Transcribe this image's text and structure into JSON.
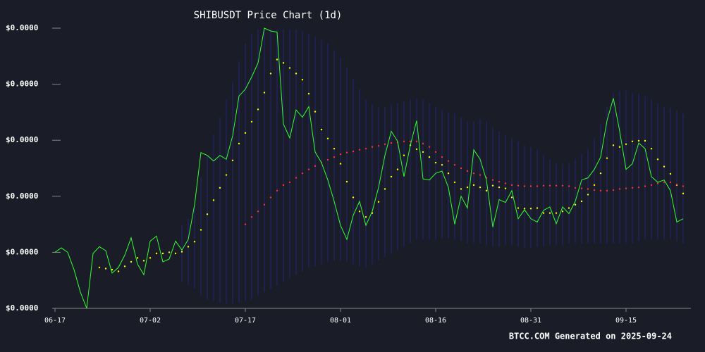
{
  "chart_data": {
    "type": "line",
    "title": "SHIBUSDT Price Chart (1d)",
    "footer": "BTCC.COM Generated on 2025-09-24",
    "categories": [
      "06-17",
      null,
      null,
      null,
      null,
      null,
      null,
      null,
      null,
      null,
      null,
      null,
      null,
      null,
      null,
      "07-02",
      null,
      null,
      null,
      null,
      null,
      null,
      null,
      null,
      null,
      null,
      null,
      null,
      null,
      null,
      "07-17",
      null,
      null,
      null,
      null,
      null,
      null,
      null,
      null,
      null,
      null,
      null,
      null,
      null,
      null,
      "08-01",
      null,
      null,
      null,
      null,
      null,
      null,
      null,
      null,
      null,
      null,
      null,
      null,
      null,
      null,
      "08-16",
      null,
      null,
      null,
      null,
      null,
      null,
      null,
      null,
      null,
      null,
      null,
      null,
      null,
      null,
      "08-31",
      null,
      null,
      null,
      null,
      null,
      null,
      null,
      null,
      null,
      null,
      null,
      null,
      null,
      null,
      "09-15",
      null,
      null,
      null,
      null,
      null,
      null,
      null,
      null,
      null
    ],
    "ylim": [
      1e-05,
      1.5e-05
    ],
    "yticks": [
      {
        "value": 1e-05,
        "label": "$0.0000"
      },
      {
        "value": 1.1e-05,
        "label": "$0.0000"
      },
      {
        "value": 1.2e-05,
        "label": "$0.0000"
      },
      {
        "value": 1.3e-05,
        "label": "$0.0000"
      },
      {
        "value": 1.4e-05,
        "label": "$0.0000"
      },
      {
        "value": 1.5e-05,
        "label": "$0.0000"
      }
    ],
    "band": {
      "color": "#23237a",
      "upper": [
        null,
        null,
        null,
        null,
        null,
        null,
        null,
        null,
        null,
        null,
        null,
        null,
        null,
        null,
        null,
        null,
        null,
        null,
        null,
        null,
        1.148e-05,
        1.16e-05,
        1.185e-05,
        1.235e-05,
        1.273e-05,
        1.31e-05,
        1.341e-05,
        1.373e-05,
        1.404e-05,
        1.441e-05,
        1.473e-05,
        1.491e-05,
        1.498e-05,
        1.498e-05,
        1.498e-05,
        1.498e-05,
        1.498e-05,
        1.498e-05,
        1.498e-05,
        1.495e-05,
        1.491e-05,
        1.485e-05,
        1.479e-05,
        1.473e-05,
        1.46e-05,
        1.448e-05,
        1.429e-05,
        1.41e-05,
        1.391e-05,
        1.373e-05,
        1.363e-05,
        1.36e-05,
        1.36e-05,
        1.363e-05,
        1.366e-05,
        1.37e-05,
        1.373e-05,
        1.375e-05,
        1.373e-05,
        1.366e-05,
        1.36e-05,
        1.354e-05,
        1.35e-05,
        1.348e-05,
        1.341e-05,
        1.335e-05,
        1.335e-05,
        1.338e-05,
        1.333e-05,
        1.323e-05,
        1.316e-05,
        1.31e-05,
        1.304e-05,
        1.298e-05,
        1.291e-05,
        1.288e-05,
        1.283e-05,
        1.273e-05,
        1.266e-05,
        1.26e-05,
        1.258e-05,
        1.26e-05,
        1.266e-05,
        1.275e-05,
        1.285e-05,
        1.304e-05,
        1.329e-05,
        1.36e-05,
        1.385e-05,
        1.388e-05,
        1.388e-05,
        1.385e-05,
        1.383e-05,
        1.379e-05,
        1.373e-05,
        1.366e-05,
        1.36e-05,
        1.358e-05,
        1.354e-05,
        1.348e-05
      ],
      "lower": [
        null,
        null,
        null,
        null,
        null,
        null,
        null,
        null,
        null,
        null,
        null,
        null,
        null,
        null,
        null,
        null,
        null,
        null,
        null,
        null,
        1.048e-05,
        1.041e-05,
        1.035e-05,
        1.023e-05,
        1.016e-05,
        1.013e-05,
        1.01e-05,
        1.008e-05,
        1.008e-05,
        1.01e-05,
        1.013e-05,
        1.016e-05,
        1.023e-05,
        1.029e-05,
        1.035e-05,
        1.041e-05,
        1.048e-05,
        1.054e-05,
        1.06e-05,
        1.066e-05,
        1.073e-05,
        1.075e-05,
        1.079e-05,
        1.083e-05,
        1.085e-05,
        1.085e-05,
        1.083e-05,
        1.079e-05,
        1.075e-05,
        1.073e-05,
        1.079e-05,
        1.085e-05,
        1.091e-05,
        1.098e-05,
        1.104e-05,
        1.11e-05,
        1.116e-05,
        1.123e-05,
        1.123e-05,
        1.123e-05,
        1.123e-05,
        1.125e-05,
        1.125e-05,
        1.123e-05,
        1.12e-05,
        1.116e-05,
        1.116e-05,
        1.116e-05,
        1.113e-05,
        1.11e-05,
        1.11e-05,
        1.113e-05,
        1.113e-05,
        1.11e-05,
        1.108e-05,
        1.108e-05,
        1.11e-05,
        1.11e-05,
        1.113e-05,
        1.113e-05,
        1.113e-05,
        1.116e-05,
        1.116e-05,
        1.116e-05,
        1.116e-05,
        1.116e-05,
        1.116e-05,
        1.116e-05,
        1.116e-05,
        1.116e-05,
        1.116e-05,
        1.116e-05,
        1.12e-05,
        1.123e-05,
        1.123e-05,
        1.123e-05,
        1.123e-05,
        1.123e-05,
        1.12e-05,
        1.116e-05
      ]
    },
    "series": [
      {
        "mark": "line",
        "color": "#33ff33",
        "values": [
          1.1e-05,
          1.108e-05,
          1.1e-05,
          1.069e-05,
          1.029e-05,
          1e-05,
          1.098e-05,
          1.11e-05,
          1.103e-05,
          1.063e-05,
          1.073e-05,
          1.095e-05,
          1.126e-05,
          1.079e-05,
          1.06e-05,
          1.12e-05,
          1.129e-05,
          1.083e-05,
          1.088e-05,
          1.12e-05,
          1.104e-05,
          1.123e-05,
          1.185e-05,
          1.278e-05,
          1.273e-05,
          1.263e-05,
          1.273e-05,
          1.266e-05,
          1.308e-05,
          1.379e-05,
          1.391e-05,
          1.413e-05,
          1.438e-05,
          1.5e-05,
          1.495e-05,
          1.493e-05,
          1.329e-05,
          1.304e-05,
          1.354e-05,
          1.341e-05,
          1.36e-05,
          1.279e-05,
          1.26e-05,
          1.229e-05,
          1.191e-05,
          1.148e-05,
          1.123e-05,
          1.166e-05,
          1.191e-05,
          1.148e-05,
          1.173e-05,
          1.216e-05,
          1.273e-05,
          1.316e-05,
          1.298e-05,
          1.235e-05,
          1.291e-05,
          1.335e-05,
          1.231e-05,
          1.229e-05,
          1.241e-05,
          1.245e-05,
          1.216e-05,
          1.15e-05,
          1.2e-05,
          1.179e-05,
          1.283e-05,
          1.266e-05,
          1.229e-05,
          1.145e-05,
          1.194e-05,
          1.189e-05,
          1.21e-05,
          1.16e-05,
          1.176e-05,
          1.16e-05,
          1.154e-05,
          1.175e-05,
          1.181e-05,
          1.151e-05,
          1.181e-05,
          1.169e-05,
          1.191e-05,
          1.229e-05,
          1.233e-05,
          1.248e-05,
          1.27e-05,
          1.335e-05,
          1.375e-05,
          1.316e-05,
          1.248e-05,
          1.258e-05,
          1.295e-05,
          1.285e-05,
          1.235e-05,
          1.225e-05,
          1.229e-05,
          1.21e-05,
          1.154e-05,
          1.16e-05
        ]
      },
      {
        "mark": "dots",
        "color": "#ffff00",
        "values": [
          null,
          null,
          null,
          null,
          null,
          null,
          null,
          1.073e-05,
          1.071e-05,
          1.069e-05,
          1.066e-05,
          1.075e-05,
          1.083e-05,
          1.09e-05,
          1.085e-05,
          1.09e-05,
          1.098e-05,
          1.098e-05,
          1.1e-05,
          1.098e-05,
          1.101e-05,
          1.11e-05,
          1.119e-05,
          1.14e-05,
          1.168e-05,
          1.193e-05,
          1.215e-05,
          1.238e-05,
          1.264e-05,
          1.294e-05,
          1.313e-05,
          1.333e-05,
          1.355e-05,
          1.385e-05,
          1.419e-05,
          1.444e-05,
          1.438e-05,
          1.429e-05,
          1.419e-05,
          1.408e-05,
          1.383e-05,
          1.351e-05,
          1.319e-05,
          1.303e-05,
          1.285e-05,
          1.258e-05,
          1.226e-05,
          1.198e-05,
          1.173e-05,
          1.163e-05,
          1.17e-05,
          1.19e-05,
          1.213e-05,
          1.235e-05,
          1.248e-05,
          1.273e-05,
          1.291e-05,
          1.284e-05,
          1.279e-05,
          1.27e-05,
          1.26e-05,
          1.256e-05,
          1.241e-05,
          1.225e-05,
          1.213e-05,
          1.216e-05,
          1.22e-05,
          1.216e-05,
          1.21e-05,
          1.219e-05,
          1.216e-05,
          1.214e-05,
          1.198e-05,
          1.179e-05,
          1.178e-05,
          1.178e-05,
          1.179e-05,
          1.17e-05,
          1.17e-05,
          1.17e-05,
          1.173e-05,
          1.179e-05,
          1.185e-05,
          1.191e-05,
          1.203e-05,
          1.22e-05,
          1.241e-05,
          1.268e-05,
          1.291e-05,
          1.288e-05,
          1.293e-05,
          1.298e-05,
          1.299e-05,
          1.299e-05,
          1.285e-05,
          1.266e-05,
          1.253e-05,
          1.24e-05,
          1.22e-05,
          1.205e-05
        ]
      },
      {
        "mark": "dots",
        "color": "#ff3030",
        "values": [
          null,
          null,
          null,
          null,
          null,
          null,
          null,
          null,
          null,
          null,
          null,
          null,
          null,
          null,
          null,
          null,
          null,
          null,
          null,
          null,
          null,
          null,
          null,
          null,
          null,
          null,
          null,
          null,
          null,
          null,
          1.15e-05,
          1.163e-05,
          1.173e-05,
          1.185e-05,
          1.198e-05,
          1.21e-05,
          1.22e-05,
          1.225e-05,
          1.233e-05,
          1.241e-05,
          1.248e-05,
          1.254e-05,
          1.26e-05,
          1.265e-05,
          1.27e-05,
          1.275e-05,
          1.278e-05,
          1.28e-05,
          1.283e-05,
          1.285e-05,
          1.288e-05,
          1.29e-05,
          1.293e-05,
          1.295e-05,
          1.296e-05,
          1.298e-05,
          1.298e-05,
          1.298e-05,
          1.294e-05,
          1.288e-05,
          1.279e-05,
          1.27e-05,
          1.263e-05,
          1.256e-05,
          1.25e-05,
          1.245e-05,
          1.241e-05,
          1.238e-05,
          1.233e-05,
          1.229e-05,
          1.226e-05,
          1.223e-05,
          1.22e-05,
          1.219e-05,
          1.218e-05,
          1.218e-05,
          1.218e-05,
          1.219e-05,
          1.219e-05,
          1.219e-05,
          1.219e-05,
          1.218e-05,
          1.215e-05,
          1.214e-05,
          1.213e-05,
          1.211e-05,
          1.21e-05,
          1.21e-05,
          1.211e-05,
          1.213e-05,
          1.214e-05,
          1.215e-05,
          1.216e-05,
          1.218e-05,
          1.22e-05,
          1.223e-05,
          1.225e-05,
          1.225e-05,
          1.221e-05,
          1.218e-05
        ]
      }
    ]
  }
}
